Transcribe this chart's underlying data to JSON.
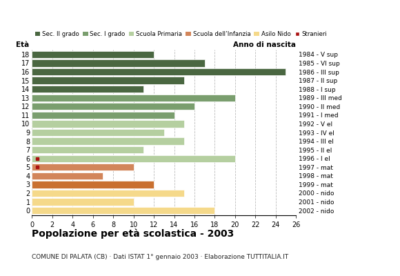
{
  "ages": [
    18,
    17,
    16,
    15,
    14,
    13,
    12,
    11,
    10,
    9,
    8,
    7,
    6,
    5,
    4,
    3,
    2,
    1,
    0
  ],
  "years": [
    "1984 - V sup",
    "1985 - VI sup",
    "1986 - III sup",
    "1987 - II sup",
    "1988 - I sup",
    "1989 - III med",
    "1990 - II med",
    "1991 - I med",
    "1992 - V el",
    "1993 - IV el",
    "1994 - III el",
    "1995 - II el",
    "1996 - I el",
    "1997 - mat",
    "1998 - mat",
    "1999 - mat",
    "2000 - nido",
    "2001 - nido",
    "2002 - nido"
  ],
  "values": [
    12,
    17,
    25,
    15,
    11,
    20,
    16,
    14,
    15,
    13,
    15,
    11,
    20,
    10,
    7,
    12,
    15,
    10,
    18
  ],
  "bar_colors": [
    "#4a6741",
    "#4a6741",
    "#4a6741",
    "#4a6741",
    "#4a6741",
    "#7a9e6e",
    "#7a9e6e",
    "#7a9e6e",
    "#b5cfa0",
    "#b5cfa0",
    "#b5cfa0",
    "#b5cfa0",
    "#b5cfa0",
    "#d2855a",
    "#d2855a",
    "#c97030",
    "#f5d98a",
    "#f5d98a",
    "#f5d98a"
  ],
  "stranieri_ages": [
    6,
    5
  ],
  "legend_labels": [
    "Sec. II grado",
    "Sec. I grado",
    "Scuola Primaria",
    "Scuola dell’Infanzia",
    "Asilo Nido",
    "Stranieri"
  ],
  "legend_colors": [
    "#4a6741",
    "#7a9e6e",
    "#b5cfa0",
    "#d2855a",
    "#f5d98a",
    "#aa1111"
  ],
  "title": "Popolazione per età scolastica - 2003",
  "subtitle": "COMUNE DI PALATA (CB) · Dati ISTAT 1° gennaio 2003 · Elaborazione TUTTITALIA.IT",
  "label_eta": "Età",
  "label_anno": "Anno di nascita",
  "xlim": [
    0,
    26
  ],
  "xticks": [
    0,
    2,
    4,
    6,
    8,
    10,
    12,
    14,
    16,
    18,
    20,
    22,
    24,
    26
  ],
  "ylim": [
    -0.55,
    18.55
  ],
  "grid_color": "#bbbbbb",
  "bar_height": 0.82
}
